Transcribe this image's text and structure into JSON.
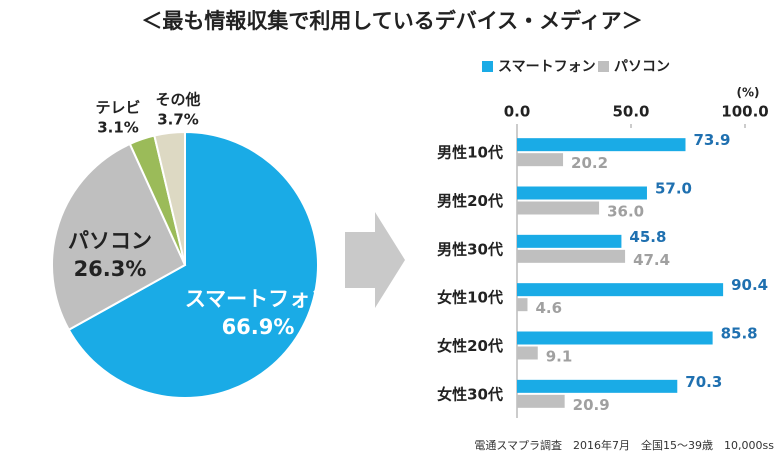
{
  "title": "＜最も情報収集で利用しているデバイス・メディア＞",
  "note": "電通スマプラ調査　2016年7月　全国15～39歳　10,000ss",
  "chart_data": [
    {
      "type": "pie",
      "categories": [
        "スマートフォン",
        "パソコン",
        "テレビ",
        "その他"
      ],
      "values": [
        66.9,
        26.3,
        3.1,
        3.7
      ],
      "value_labels": [
        "66.9%",
        "26.3%",
        "3.1%",
        "3.7%"
      ],
      "colors": [
        "#1aabe6",
        "#bfbfbf",
        "#9bbb59",
        "#ddd9c3"
      ]
    },
    {
      "type": "bar",
      "orientation": "horizontal",
      "x_unit": "(%)",
      "categories": [
        "男性10代",
        "男性20代",
        "男性30代",
        "女性10代",
        "女性20代",
        "女性30代"
      ],
      "series": [
        {
          "name": "スマートフォン",
          "color": "#1aabe6",
          "label_color": "#1f70b0",
          "values": [
            73.9,
            57.0,
            45.8,
            90.4,
            85.8,
            70.3
          ],
          "value_labels": [
            "73.9",
            "57.0",
            "45.8",
            "90.4",
            "85.8",
            "70.3"
          ]
        },
        {
          "name": "パソコン",
          "color": "#bfbfbf",
          "label_color": "#a0a0a0",
          "values": [
            20.2,
            36.0,
            47.4,
            4.6,
            9.1,
            20.9
          ],
          "value_labels": [
            "20.2",
            "36.0",
            "47.4",
            "4.6",
            "9.1",
            "20.9"
          ]
        }
      ],
      "xlim": [
        0,
        100
      ],
      "xticks": [
        {
          "value": 0,
          "label": "0.0"
        },
        {
          "value": 50,
          "label": "50.0"
        },
        {
          "value": 100,
          "label": "100.0"
        }
      ]
    }
  ]
}
